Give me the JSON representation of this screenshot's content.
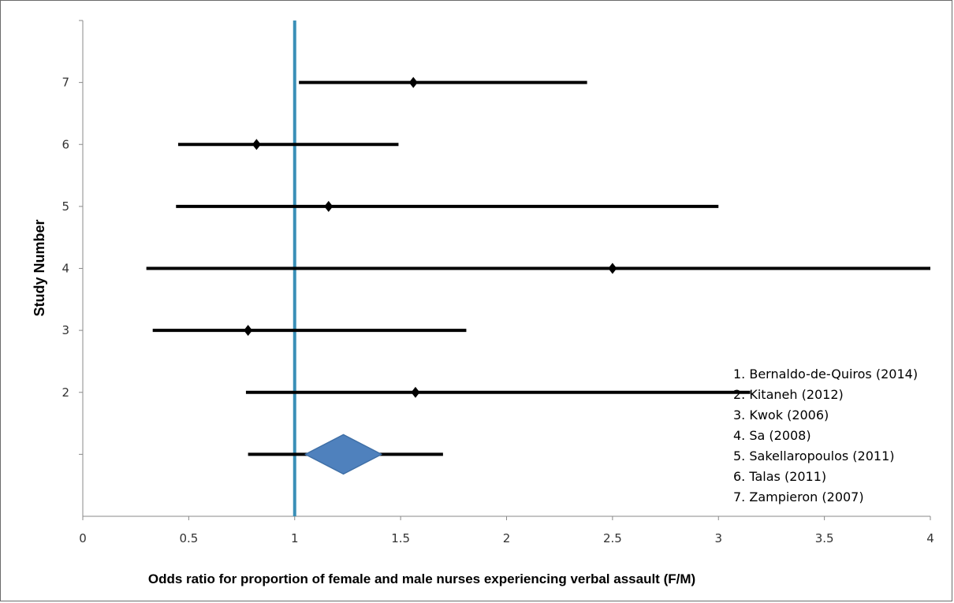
{
  "chart_data": {
    "type": "forest",
    "xlabel": "Odds ratio for proportion of female and male nurses experiencing verbal assault (F/M)",
    "ylabel": "Study Number",
    "xlim": [
      0,
      4
    ],
    "ylim": [
      0,
      8
    ],
    "x_ticks": [
      "0",
      "0.5",
      "1",
      "1.5",
      "2",
      "2.5",
      "3",
      "3.5",
      "4"
    ],
    "y_ticks": [
      "2",
      "3",
      "4",
      "5",
      "6",
      "7"
    ],
    "reference_line": {
      "x": 1,
      "color": "#3a8fb7"
    },
    "studies": [
      {
        "y": 7,
        "or": 1.56,
        "ci": [
          1.02,
          2.38
        ]
      },
      {
        "y": 6,
        "or": 0.82,
        "ci": [
          0.45,
          1.49
        ]
      },
      {
        "y": 5,
        "or": 1.16,
        "ci": [
          0.44,
          3.0
        ]
      },
      {
        "y": 4,
        "or": 2.5,
        "ci": [
          0.3,
          4.0
        ]
      },
      {
        "y": 3,
        "or": 0.78,
        "ci": [
          0.33,
          1.81
        ]
      },
      {
        "y": 2,
        "or": 1.57,
        "ci": [
          0.77,
          3.15
        ]
      },
      {
        "y": 1,
        "or": 1.16,
        "ci": [
          0.78,
          1.7
        ]
      }
    ],
    "pooled": {
      "y": 0,
      "or": 1.23,
      "ci": [
        1.05,
        1.41
      ],
      "color": "#4f81bd"
    },
    "legend": [
      "1. Bernaldo-de-Quiros (2014)",
      "2. Kitaneh (2012)",
      "3. Kwok (2006)",
      "4. Sa (2008)",
      "5. Sakellaropoulos (2011)",
      "6. Talas (2011)",
      "7. Zampieron (2007)"
    ],
    "legend_position": "bottom-right",
    "grid": false
  }
}
